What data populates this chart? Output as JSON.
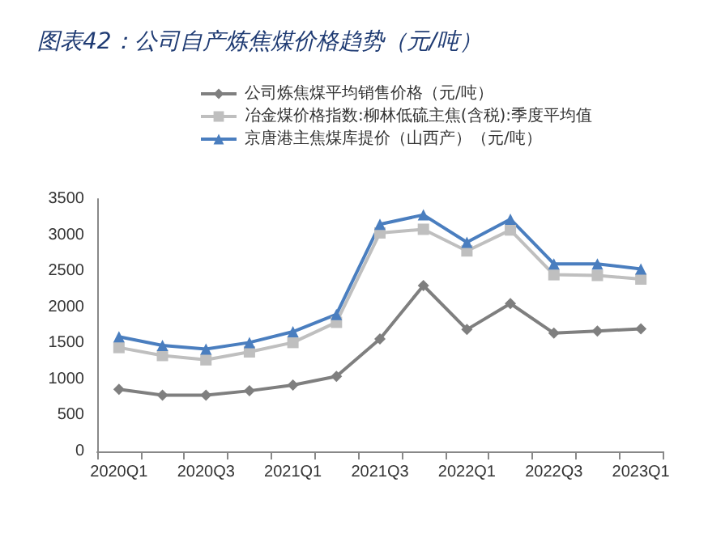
{
  "chart_data": {
    "type": "line",
    "title": "图表42：公司自产炼焦煤价格趋势（元/吨）",
    "categories": [
      "2020Q1",
      null,
      "2020Q3",
      null,
      "2021Q1",
      null,
      "2021Q3",
      null,
      "2022Q1",
      null,
      "2022Q3",
      null,
      "2023Q1"
    ],
    "series": [
      {
        "name": "公司炼焦煤平均销售价格（元/吨）",
        "color": "#7f7f7f",
        "marker": "diamond",
        "values": [
          860,
          780,
          780,
          840,
          920,
          1040,
          1560,
          2300,
          1690,
          2050,
          1640,
          1670,
          1700
        ]
      },
      {
        "name": "冶金煤价格指数:柳林低硫主焦(含税):季度平均值",
        "color": "#bfbfbf",
        "marker": "square",
        "values": [
          1440,
          1330,
          1270,
          1380,
          1510,
          1790,
          3030,
          3080,
          2780,
          3070,
          2450,
          2440,
          2390
        ]
      },
      {
        "name": "京唐港主焦煤库提价（山西产）（元/吨）",
        "color": "#4a7ebf",
        "marker": "triangle",
        "values": [
          1590,
          1470,
          1420,
          1510,
          1660,
          1900,
          3150,
          3280,
          2900,
          3220,
          2600,
          2600,
          2530
        ]
      }
    ],
    "ylim": [
      0,
      3500
    ],
    "yticks": [
      0,
      500,
      1000,
      1500,
      2000,
      2500,
      3000,
      3500
    ],
    "grid": false,
    "legend": "top"
  }
}
